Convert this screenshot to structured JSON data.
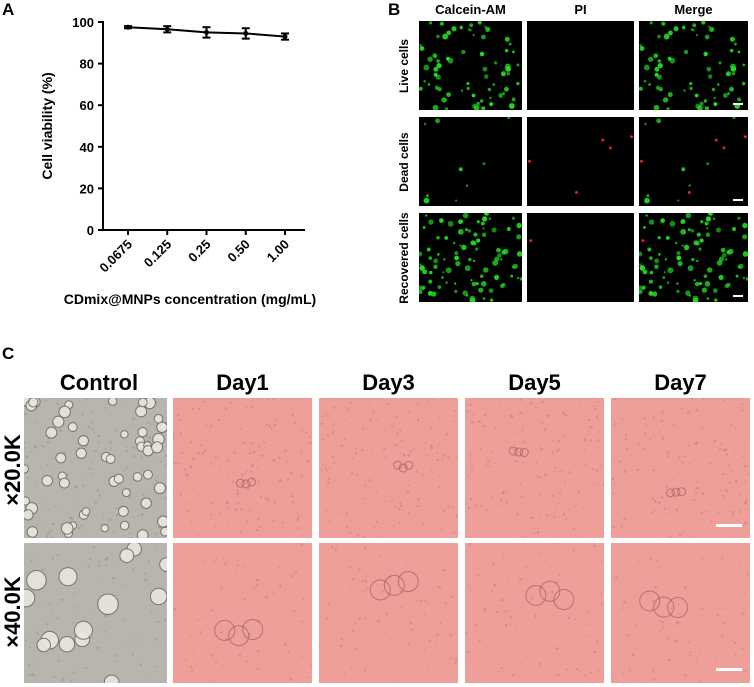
{
  "panels": {
    "a": "A",
    "b": "B",
    "c": "C"
  },
  "chart_data": {
    "type": "line",
    "categories": [
      "0.0675",
      "0.125",
      "0.25",
      "0.50",
      "1.00"
    ],
    "series": [
      {
        "values": [
          97.5,
          96.5,
          95,
          94.5,
          93
        ],
        "errors": [
          0.5,
          1.5,
          2.5,
          2.5,
          1.5
        ]
      }
    ],
    "xlabel": "CDmix@MNPs concentration (mg/mL)",
    "ylabel": "Cell viability (%)",
    "ylim": [
      0,
      100
    ],
    "yticks": [
      "0",
      "20",
      "40",
      "60",
      "80",
      "100"
    ],
    "grid": false,
    "color": "#000000"
  },
  "panel_b": {
    "col_headers": [
      "Calcein-AM",
      "PI",
      "Merge"
    ],
    "row_labels": [
      "Live cells",
      "Dead cells",
      "Recovered cells"
    ],
    "background": "#000000",
    "green": "#22dd22",
    "red": "#ff2222"
  },
  "panel_c": {
    "col_headers": [
      "Control",
      "Day1",
      "Day3",
      "Day5",
      "Day7"
    ],
    "row_labels": [
      "×20.0K",
      "×40.0K"
    ],
    "control_color": "#b8b5ae",
    "day_color": "#ee9f9a"
  }
}
